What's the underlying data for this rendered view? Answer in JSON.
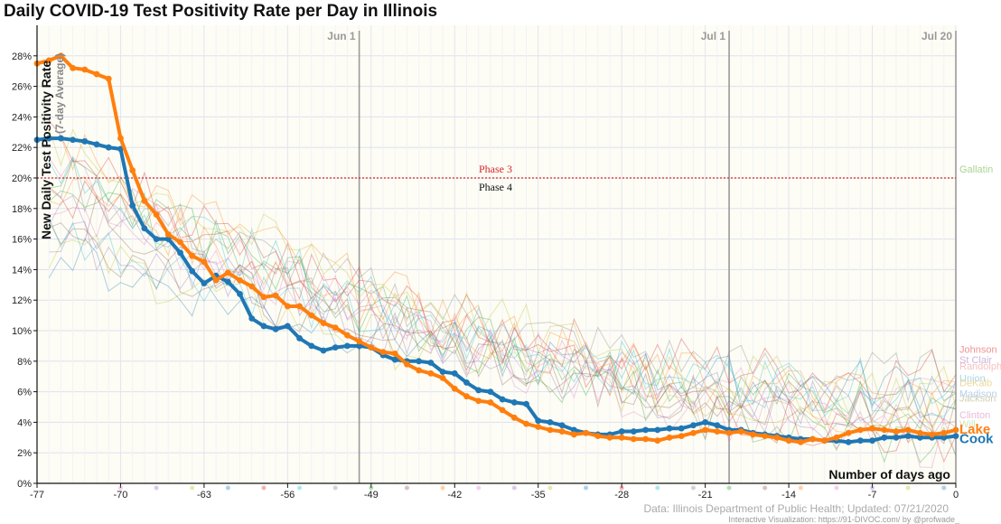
{
  "title": "Daily COVID-19 Test Positivity Rate per Day in Illinois",
  "source": "Data: Illinois Department of Public Health; Updated: 07/21/2020",
  "credit": "Interactive Visualization: https://91-DIVOC.com/ by @profwade_",
  "colors": {
    "cook": "#1f77b4",
    "lake": "#ff7f0e",
    "phase_line": "#d62728",
    "plot_bg": "#fdfdf5",
    "grid": "#dde1ee"
  },
  "chart_data": {
    "type": "line",
    "title": "Daily COVID-19 Test Positivity Rate per Day in Illinois",
    "xlabel": "Number of days ago",
    "ylabel": "New Daily Test Positivity Rate",
    "ylabel_sub": "(7-day Average)",
    "xlim": [
      -77,
      0
    ],
    "ylim": [
      0,
      30
    ],
    "x_ticks": [
      -77,
      -70,
      -63,
      -56,
      -49,
      -42,
      -35,
      -28,
      -21,
      -14,
      -7,
      0
    ],
    "y_ticks": [
      0,
      2,
      4,
      6,
      8,
      10,
      12,
      14,
      16,
      18,
      20,
      22,
      24,
      26,
      28
    ],
    "y_tick_suffix": "%",
    "grid": true,
    "date_markers": [
      {
        "x": -50,
        "label": "Jun 1"
      },
      {
        "x": -19,
        "label": "Jul 1"
      },
      {
        "x": 0,
        "label": "Jul 20"
      }
    ],
    "reference_line": {
      "y": 20,
      "label_above": "Phase 3",
      "label_below": "Phase 4"
    },
    "series": [
      {
        "name": "Cook",
        "emphasis": true,
        "x_start": -77,
        "values": [
          22.5,
          22.6,
          22.6,
          22.5,
          22.4,
          22.2,
          22.0,
          21.9,
          18.2,
          16.7,
          16.0,
          16.0,
          15.1,
          13.9,
          13.1,
          13.6,
          13.2,
          12.4,
          10.8,
          10.3,
          10.1,
          10.3,
          9.5,
          9.0,
          8.7,
          8.9,
          9.0,
          9.0,
          8.9,
          8.4,
          8.1,
          8.0,
          8.0,
          7.9,
          7.3,
          7.2,
          6.6,
          6.1,
          6.0,
          5.5,
          5.3,
          5.2,
          4.1,
          4.0,
          3.8,
          3.5,
          3.3,
          3.2,
          3.2,
          3.4,
          3.4,
          3.5,
          3.5,
          3.6,
          3.6,
          3.8,
          4.0,
          3.8,
          3.5,
          3.5,
          3.3,
          3.2,
          3.1,
          3.0,
          2.9,
          2.9,
          2.8,
          2.8,
          2.7,
          2.8,
          2.8,
          3.0,
          3.0,
          3.1,
          3.0,
          3.0,
          3.0,
          3.1
        ]
      },
      {
        "name": "Lake",
        "emphasis": true,
        "x_start": -77,
        "values": [
          27.5,
          27.7,
          28.0,
          27.2,
          27.1,
          26.8,
          26.5,
          22.6,
          20.5,
          18.5,
          17.6,
          16.3,
          15.8,
          14.9,
          14.5,
          13.3,
          13.8,
          13.3,
          12.9,
          12.2,
          12.3,
          11.6,
          11.6,
          11.0,
          10.5,
          10.2,
          9.7,
          9.3,
          8.9,
          8.6,
          8.5,
          7.8,
          7.4,
          7.2,
          6.9,
          6.2,
          5.7,
          5.4,
          5.3,
          4.8,
          4.3,
          3.9,
          3.7,
          3.5,
          3.4,
          3.2,
          3.3,
          3.1,
          3.0,
          3.0,
          2.9,
          2.9,
          2.8,
          3.0,
          3.1,
          3.3,
          3.5,
          3.4,
          3.3,
          3.4,
          3.2,
          3.1,
          3.0,
          2.8,
          2.7,
          2.9,
          2.8,
          3.0,
          3.3,
          3.5,
          3.6,
          3.5,
          3.4,
          3.5,
          3.3,
          3.2,
          3.3,
          3.5
        ]
      }
    ],
    "background_series_labels": [
      "Gallatin",
      "Johnson",
      "St Clair",
      "Randolph",
      "Union",
      "DeKalb",
      "Madison",
      "Jackson",
      "Clinton",
      "Will"
    ]
  }
}
